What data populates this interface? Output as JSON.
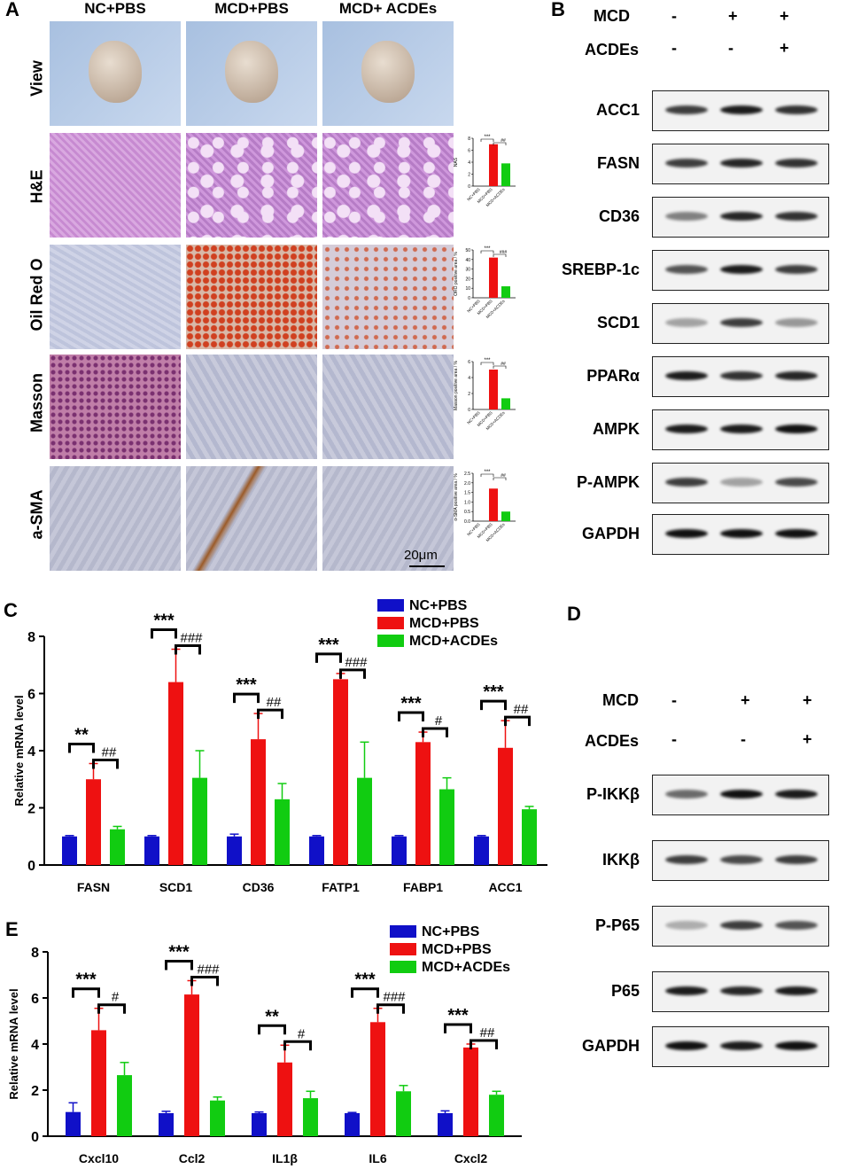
{
  "panels": {
    "a": "A",
    "b": "B",
    "c": "C",
    "d": "D",
    "e": "E"
  },
  "panelA": {
    "columns": [
      "NC+PBS",
      "MCD+PBS",
      "MCD+ ACDEs"
    ],
    "rows": [
      "View",
      "H&E",
      "Oil Red O",
      "Masson",
      "a-SMA"
    ],
    "scalebar": "20μm"
  },
  "mini_charts": [
    {
      "ylabel": "NAS",
      "values": [
        0,
        7,
        3.8
      ],
      "ylim": [
        0,
        8
      ],
      "ticks": [
        "0",
        "2",
        "4",
        "6",
        "8"
      ],
      "sig1": "***",
      "sig2": "##"
    },
    {
      "ylabel": "ORO positive area / %",
      "values": [
        0,
        42,
        12
      ],
      "ylim": [
        0,
        50
      ],
      "ticks": [
        "0",
        "10",
        "20",
        "30",
        "40",
        "50"
      ],
      "sig1": "***",
      "sig2": "###"
    },
    {
      "ylabel": "Masson positive area / %",
      "values": [
        0,
        5,
        1.4
      ],
      "ylim": [
        0,
        6
      ],
      "ticks": [
        "0",
        "2",
        "4",
        "6"
      ],
      "sig1": "***",
      "sig2": "##"
    },
    {
      "ylabel": "α-SMA positive area / %",
      "values": [
        0,
        1.7,
        0.5
      ],
      "ylim": [
        0,
        2.5
      ],
      "ticks": [
        "0.0",
        "0.5",
        "1.0",
        "1.5",
        "2.0",
        "2.5"
      ],
      "sig1": "***",
      "sig2": "##"
    }
  ],
  "mini_categories": [
    "NC+PBS",
    "MCD+PBS",
    "MCD+ACDEs"
  ],
  "panelB": {
    "mcd_label": "MCD",
    "acdes_label": "ACDEs",
    "mcd_signs": [
      "-",
      "+",
      "+"
    ],
    "acdes_signs": [
      "-",
      "-",
      "+"
    ],
    "proteins": [
      "ACC1",
      "FASN",
      "CD36",
      "SREBP-1c",
      "SCD1",
      "PPARα",
      "AMPK",
      "P-AMPK",
      "GAPDH"
    ]
  },
  "panelD": {
    "mcd_label": "MCD",
    "acdes_label": "ACDEs",
    "mcd_signs": [
      "-",
      "+",
      "+"
    ],
    "acdes_signs": [
      "-",
      "-",
      "+"
    ],
    "proteins": [
      "P-IKKβ",
      "IKKβ",
      "P-P65",
      "P65",
      "GAPDH"
    ]
  },
  "colors": {
    "nc": "#1010c8",
    "mcd": "#ee1111",
    "acdes": "#11cc11"
  },
  "chart_data": [
    {
      "type": "bar",
      "ylabel": "Relative mRNA level",
      "ylim": [
        0,
        8
      ],
      "yticks": [
        "0",
        "2",
        "4",
        "6",
        "8"
      ],
      "categories": [
        "FASN",
        "SCD1",
        "CD36",
        "FATP1",
        "FABP1",
        "ACC1"
      ],
      "series": [
        {
          "name": "NC+PBS",
          "values": [
            1,
            1,
            1,
            1,
            1,
            1
          ],
          "errors": [
            0.03,
            0.03,
            0.08,
            0.03,
            0.03,
            0.03
          ]
        },
        {
          "name": "MCD+PBS",
          "values": [
            3.0,
            6.4,
            4.4,
            6.5,
            4.3,
            4.1
          ],
          "errors": [
            0.55,
            1.15,
            0.9,
            0.2,
            0.35,
            0.95
          ]
        },
        {
          "name": "MCD+ACDEs",
          "values": [
            1.25,
            3.05,
            2.3,
            3.05,
            2.65,
            1.95
          ],
          "errors": [
            0.1,
            0.95,
            0.55,
            1.25,
            0.4,
            0.1
          ]
        }
      ],
      "sig1": [
        "**",
        "***",
        "***",
        "***",
        "***",
        "***"
      ],
      "sig2": [
        "##",
        "###",
        "##",
        "###",
        "#",
        "##"
      ]
    },
    {
      "type": "bar",
      "ylabel": "Relative mRNA level",
      "ylim": [
        0,
        8
      ],
      "yticks": [
        "0",
        "2",
        "4",
        "6",
        "8"
      ],
      "categories": [
        "Cxcl10",
        "Ccl2",
        "IL1β",
        "IL6",
        "Cxcl2"
      ],
      "series": [
        {
          "name": "NC+PBS",
          "values": [
            1.05,
            1.0,
            1.0,
            1.0,
            1.0
          ],
          "errors": [
            0.4,
            0.08,
            0.05,
            0.03,
            0.1
          ]
        },
        {
          "name": "MCD+PBS",
          "values": [
            4.6,
            6.15,
            3.2,
            4.95,
            3.85
          ],
          "errors": [
            0.95,
            0.6,
            0.75,
            0.6,
            0.15
          ]
        },
        {
          "name": "MCD+ACDEs",
          "values": [
            2.65,
            1.55,
            1.65,
            1.95,
            1.8
          ],
          "errors": [
            0.55,
            0.15,
            0.3,
            0.25,
            0.15
          ]
        }
      ],
      "sig1": [
        "***",
        "***",
        "**",
        "***",
        "***"
      ],
      "sig2": [
        "#",
        "###",
        "#",
        "###",
        "##"
      ]
    }
  ]
}
